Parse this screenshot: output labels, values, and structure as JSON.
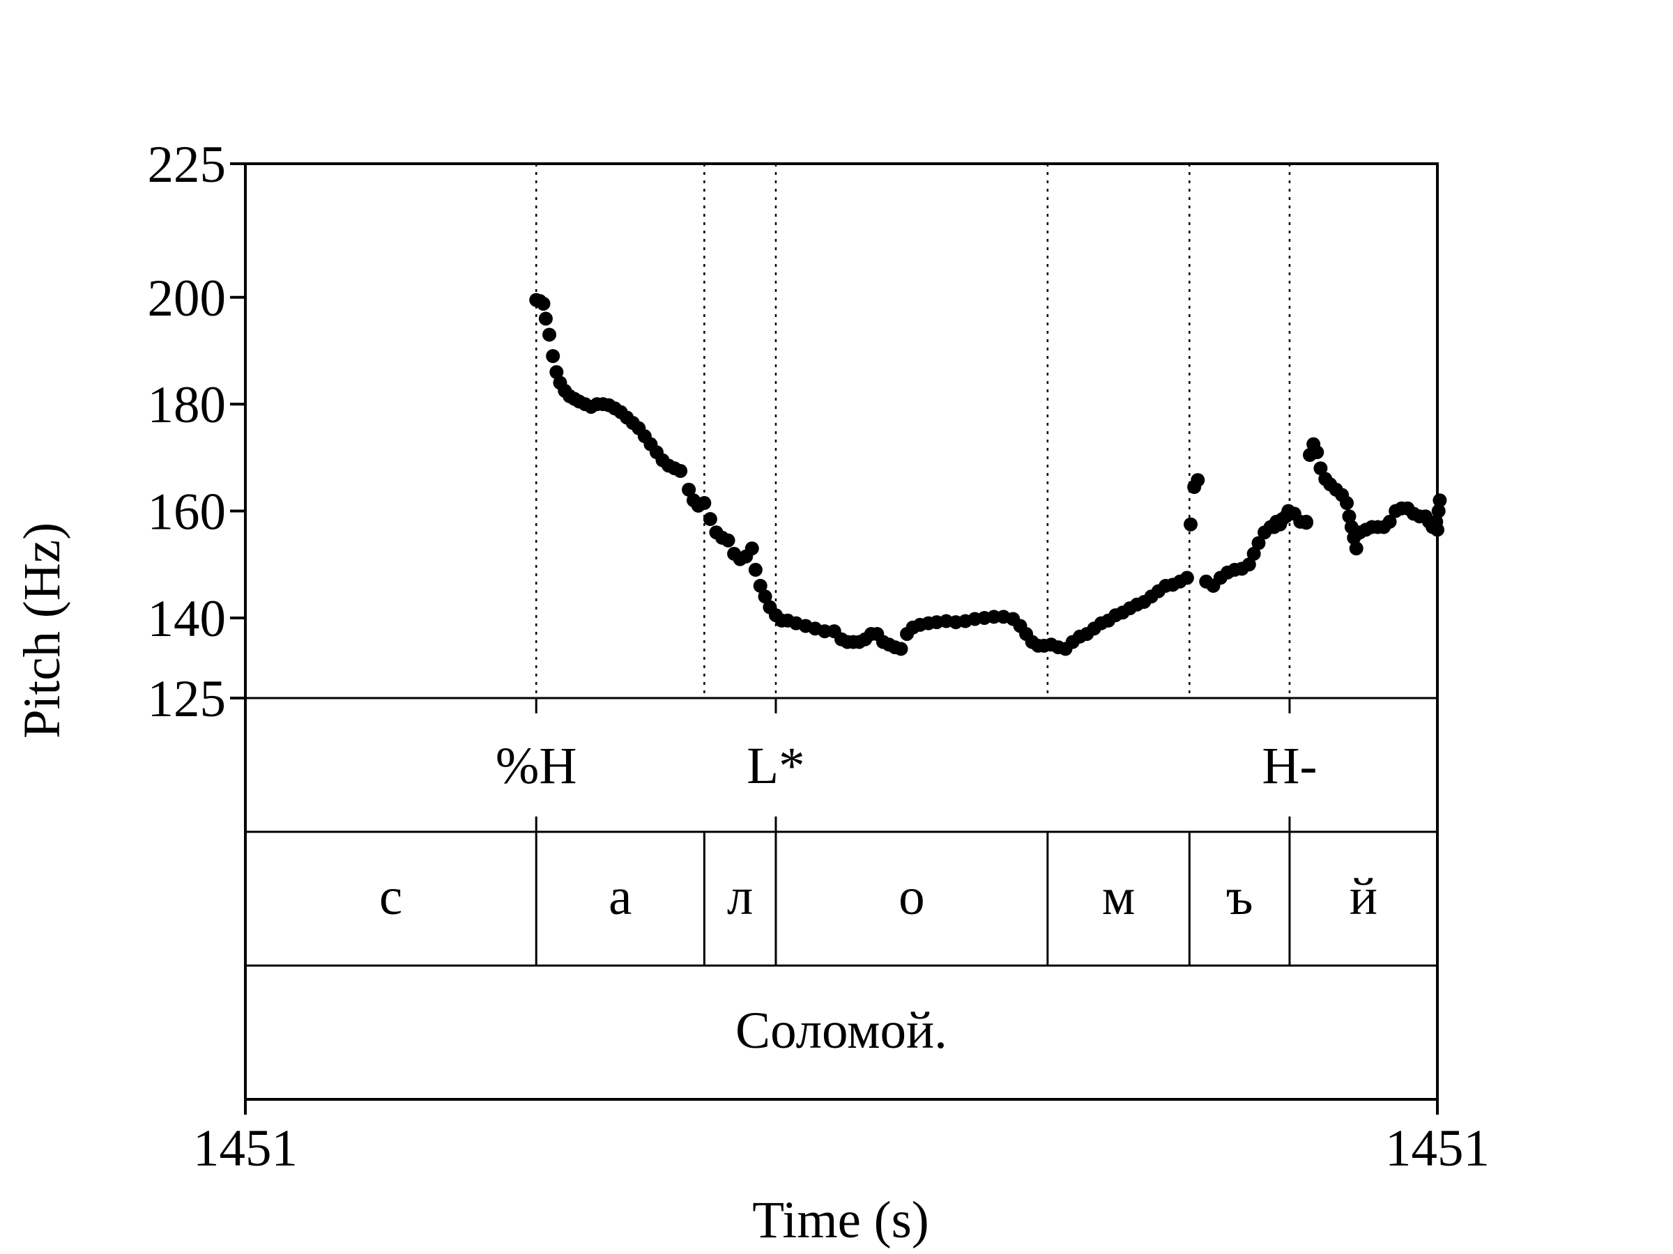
{
  "chart_data": {
    "type": "scatter",
    "xlabel": "Time (s)",
    "ylabel": "Pitch (Hz)",
    "x_ticks": [
      {
        "label": "1451",
        "value": 0
      },
      {
        "label": "1451",
        "value": 1
      }
    ],
    "xlim": [
      0,
      1
    ],
    "ylim": [
      125,
      225
    ],
    "y_ticks": [
      125,
      140,
      160,
      180,
      200,
      225
    ],
    "grid": false,
    "legend": "none",
    "series": [
      {
        "color": "#000000",
        "points": [
          [
            0.244,
            199.5
          ],
          [
            0.247,
            199.3
          ],
          [
            0.25,
            198.8
          ],
          [
            0.252,
            196
          ],
          [
            0.255,
            193
          ],
          [
            0.258,
            189
          ],
          [
            0.261,
            186
          ],
          [
            0.264,
            184
          ],
          [
            0.268,
            182.5
          ],
          [
            0.272,
            181.5
          ],
          [
            0.276,
            181
          ],
          [
            0.28,
            180.5
          ],
          [
            0.285,
            180
          ],
          [
            0.29,
            179.5
          ],
          [
            0.295,
            180
          ],
          [
            0.3,
            180
          ],
          [
            0.305,
            179.8
          ],
          [
            0.31,
            179.2
          ],
          [
            0.315,
            178.5
          ],
          [
            0.32,
            177.5
          ],
          [
            0.325,
            176.5
          ],
          [
            0.33,
            175.5
          ],
          [
            0.335,
            174
          ],
          [
            0.34,
            172.5
          ],
          [
            0.345,
            171
          ],
          [
            0.35,
            169.5
          ],
          [
            0.355,
            168.5
          ],
          [
            0.36,
            168
          ],
          [
            0.365,
            167.5
          ],
          [
            0.372,
            164
          ],
          [
            0.376,
            162
          ],
          [
            0.38,
            161
          ],
          [
            0.385,
            161.5
          ],
          [
            0.39,
            158.5
          ],
          [
            0.395,
            156
          ],
          [
            0.4,
            155
          ],
          [
            0.405,
            154.5
          ],
          [
            0.41,
            152
          ],
          [
            0.415,
            151
          ],
          [
            0.42,
            151.5
          ],
          [
            0.425,
            153
          ],
          [
            0.428,
            149
          ],
          [
            0.432,
            146
          ],
          [
            0.436,
            144
          ],
          [
            0.44,
            142
          ],
          [
            0.445,
            140.5
          ],
          [
            0.45,
            139.5
          ],
          [
            0.455,
            139.5
          ],
          [
            0.462,
            139
          ],
          [
            0.47,
            138.5
          ],
          [
            0.478,
            138
          ],
          [
            0.486,
            137.5
          ],
          [
            0.494,
            137.5
          ],
          [
            0.5,
            136
          ],
          [
            0.505,
            135.5
          ],
          [
            0.51,
            135.5
          ],
          [
            0.515,
            135.5
          ],
          [
            0.52,
            136
          ],
          [
            0.525,
            137
          ],
          [
            0.53,
            137
          ],
          [
            0.535,
            135.5
          ],
          [
            0.54,
            135
          ],
          [
            0.545,
            134.5
          ],
          [
            0.55,
            134.2
          ],
          [
            0.555,
            137
          ],
          [
            0.56,
            138.2
          ],
          [
            0.566,
            138.7
          ],
          [
            0.573,
            139
          ],
          [
            0.58,
            139.2
          ],
          [
            0.588,
            139.4
          ],
          [
            0.596,
            139.2
          ],
          [
            0.604,
            139.4
          ],
          [
            0.612,
            139.8
          ],
          [
            0.62,
            140
          ],
          [
            0.628,
            140.2
          ],
          [
            0.636,
            140.2
          ],
          [
            0.644,
            139.8
          ],
          [
            0.65,
            138.5
          ],
          [
            0.655,
            137
          ],
          [
            0.66,
            135.5
          ],
          [
            0.665,
            134.8
          ],
          [
            0.67,
            134.8
          ],
          [
            0.676,
            135
          ],
          [
            0.682,
            134.5
          ],
          [
            0.688,
            134.2
          ],
          [
            0.694,
            135.5
          ],
          [
            0.7,
            136.5
          ],
          [
            0.706,
            137
          ],
          [
            0.712,
            138
          ],
          [
            0.718,
            139
          ],
          [
            0.724,
            139.5
          ],
          [
            0.73,
            140.5
          ],
          [
            0.736,
            141
          ],
          [
            0.742,
            141.8
          ],
          [
            0.748,
            142.5
          ],
          [
            0.754,
            143
          ],
          [
            0.76,
            144
          ],
          [
            0.766,
            145
          ],
          [
            0.772,
            146
          ],
          [
            0.778,
            146.2
          ],
          [
            0.784,
            146.8
          ],
          [
            0.79,
            147.5
          ],
          [
            0.793,
            157.5
          ],
          [
            0.796,
            164.5
          ],
          [
            0.799,
            165.8
          ],
          [
            0.806,
            146.8
          ],
          [
            0.812,
            146
          ],
          [
            0.818,
            147.5
          ],
          [
            0.824,
            148.5
          ],
          [
            0.83,
            149
          ],
          [
            0.836,
            149.2
          ],
          [
            0.842,
            150
          ],
          [
            0.846,
            152
          ],
          [
            0.85,
            154
          ],
          [
            0.855,
            156
          ],
          [
            0.86,
            157
          ],
          [
            0.865,
            158
          ],
          [
            0.87,
            158.5
          ],
          [
            0.875,
            160
          ],
          [
            0.88,
            159.5
          ],
          [
            0.885,
            158
          ],
          [
            0.89,
            158
          ],
          [
            0.877,
            159.6
          ],
          [
            0.873,
            159
          ],
          [
            0.868,
            157.5
          ],
          [
            0.863,
            157
          ],
          [
            0.89,
            157.8
          ],
          [
            0.893,
            170.5
          ],
          [
            0.896,
            172.5
          ],
          [
            0.899,
            171
          ],
          [
            0.902,
            168
          ],
          [
            0.906,
            166
          ],
          [
            0.91,
            165
          ],
          [
            0.915,
            164
          ],
          [
            0.92,
            163
          ],
          [
            0.924,
            161.5
          ],
          [
            0.926,
            159
          ],
          [
            0.928,
            157
          ],
          [
            0.93,
            155
          ],
          [
            0.932,
            153
          ],
          [
            0.935,
            156
          ],
          [
            0.94,
            156.5
          ],
          [
            0.945,
            157
          ],
          [
            0.95,
            157
          ],
          [
            0.955,
            157
          ],
          [
            0.96,
            158
          ],
          [
            0.965,
            160
          ],
          [
            0.97,
            160.5
          ],
          [
            0.975,
            160.5
          ],
          [
            0.98,
            159.5
          ],
          [
            0.985,
            159
          ],
          [
            0.99,
            159
          ],
          [
            0.993,
            158
          ],
          [
            0.996,
            157
          ],
          [
            1.0,
            156.5
          ],
          [
            0.999,
            158
          ],
          [
            0.998,
            157
          ],
          [
            1.001,
            160
          ],
          [
            1.002,
            162
          ]
        ]
      }
    ],
    "boundaries": [
      {
        "time": 0.244,
        "label": "%H",
        "tone": true
      },
      {
        "time": 0.385,
        "label": "",
        "tone": false
      },
      {
        "time": 0.445,
        "label": "L*",
        "tone": true
      },
      {
        "time": 0.673,
        "label": "",
        "tone": false
      },
      {
        "time": 0.792,
        "label": "",
        "tone": false
      },
      {
        "time": 0.876,
        "label": "H-",
        "tone": true
      }
    ],
    "tiers": [
      {
        "name": "tones",
        "intervals": []
      },
      {
        "name": "segments",
        "intervals": [
          {
            "start": 0.0,
            "end": 0.244,
            "label": "с"
          },
          {
            "start": 0.244,
            "end": 0.385,
            "label": "а"
          },
          {
            "start": 0.385,
            "end": 0.445,
            "label": "л"
          },
          {
            "start": 0.445,
            "end": 0.673,
            "label": "о"
          },
          {
            "start": 0.673,
            "end": 0.792,
            "label": "м"
          },
          {
            "start": 0.792,
            "end": 0.876,
            "label": "ъ"
          },
          {
            "start": 0.876,
            "end": 1.0,
            "label": "й"
          }
        ]
      },
      {
        "name": "words",
        "intervals": [
          {
            "start": 0.0,
            "end": 1.0,
            "label": "Соломой."
          }
        ]
      }
    ]
  }
}
